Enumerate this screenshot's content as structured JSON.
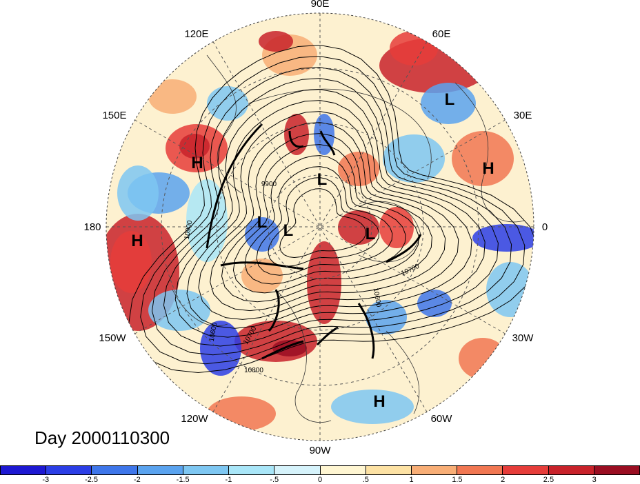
{
  "title": "Day 2000110300",
  "longitude_labels": [
    "90E",
    "60E",
    "30E",
    "0",
    "30W",
    "60W",
    "90W",
    "120W",
    "150W",
    "180",
    "150E",
    "120E"
  ],
  "pressure_systems": [
    {
      "type": "H",
      "label": "H"
    },
    {
      "type": "H",
      "label": "H"
    },
    {
      "type": "H",
      "label": "H"
    },
    {
      "type": "H",
      "label": "H"
    },
    {
      "type": "L",
      "label": "L"
    },
    {
      "type": "L",
      "label": "L"
    },
    {
      "type": "L",
      "label": "L"
    },
    {
      "type": "L",
      "label": "L"
    },
    {
      "type": "L",
      "label": "L"
    }
  ],
  "contour_labels": [
    "10900",
    "9900",
    "10700",
    "10600",
    "10700",
    "10800",
    "10600"
  ],
  "colorbar": {
    "colors": [
      "#1d18d2",
      "#2b3ee6",
      "#3e76ea",
      "#5aa3ef",
      "#7ec7f2",
      "#a9e6f8",
      "#d6f3fb",
      "#fff6d2",
      "#fde2a4",
      "#f8ae76",
      "#f17752",
      "#e63d3a",
      "#c8222a",
      "#9a0e22"
    ],
    "ticks": [
      "-3",
      "-2.5",
      "-2",
      "-1.5",
      "-1",
      "-.5",
      "0",
      ".5",
      "1",
      "1.5",
      "2",
      "2.5",
      "3"
    ]
  }
}
